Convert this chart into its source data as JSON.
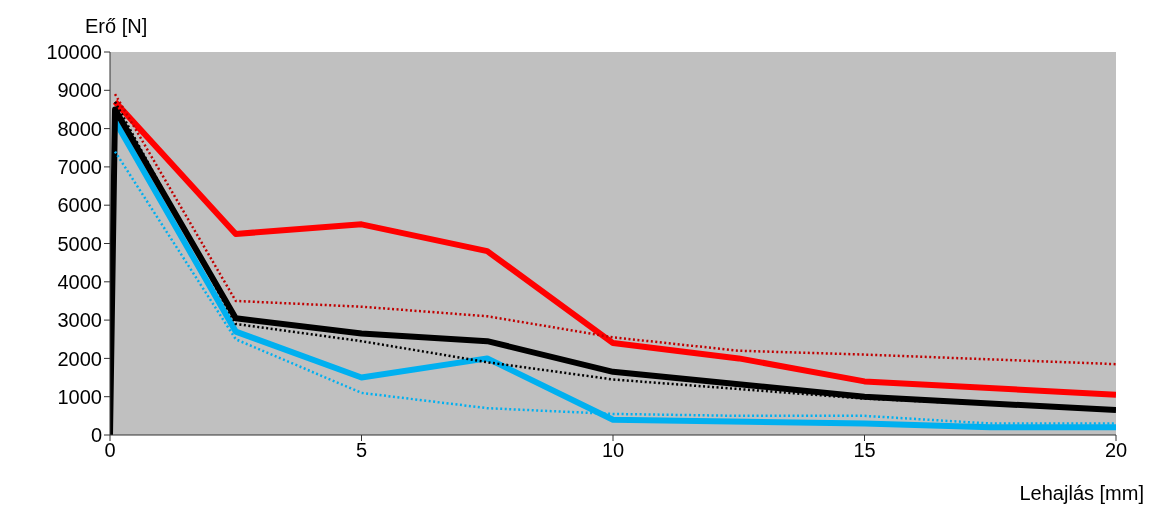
{
  "chart_data": {
    "type": "line",
    "xlabel": "Lehajlás [mm]",
    "ylabel": "Erő [N]",
    "xlim": [
      0,
      20
    ],
    "xticks": [
      0,
      5,
      10,
      15,
      20
    ],
    "ylim": [
      0,
      10000
    ],
    "yticks": [
      0,
      1000,
      2000,
      3000,
      4000,
      5000,
      6000,
      7000,
      8000,
      9000,
      10000
    ],
    "grid": false,
    "marker": "none",
    "series": [
      {
        "color": "#ff0000",
        "line_style": "solid",
        "x": [
          0.1,
          2.5,
          5,
          7.5,
          10,
          12.5,
          15,
          20
        ],
        "values": [
          8700,
          5250,
          5500,
          4800,
          2400,
          2000,
          1400,
          1050
        ]
      },
      {
        "color": "#00b0f0",
        "line_style": "solid",
        "x": [
          0.1,
          2.5,
          5,
          7.5,
          10,
          15,
          17.5,
          20
        ],
        "values": [
          8200,
          2700,
          1500,
          2000,
          400,
          300,
          200,
          200
        ]
      },
      {
        "color": "#000000",
        "line_style": "solid",
        "x": [
          0,
          0.1,
          2.5,
          5,
          7.5,
          10,
          15,
          20
        ],
        "values": [
          0,
          8500,
          3050,
          2650,
          2450,
          1650,
          1000,
          650
        ]
      },
      {
        "color": "#c00000",
        "line_style": "dotted",
        "x": [
          0.1,
          2.5,
          5,
          7.5,
          10,
          12.5,
          15,
          20
        ],
        "values": [
          8900,
          3500,
          3350,
          3100,
          2550,
          2200,
          2100,
          1850
        ]
      },
      {
        "color": "#000000",
        "line_style": "dotted",
        "x": [
          0.1,
          2.5,
          5,
          7.5,
          10,
          12.5,
          15,
          20
        ],
        "values": [
          8700,
          2900,
          2450,
          1900,
          1450,
          1200,
          950,
          650
        ]
      },
      {
        "color": "#00b0f0",
        "line_style": "dotted",
        "x": [
          0.1,
          2.5,
          5,
          7.5,
          10,
          12.5,
          15,
          17.5,
          20
        ],
        "values": [
          7400,
          2500,
          1100,
          700,
          550,
          500,
          500,
          300,
          300
        ]
      }
    ]
  }
}
